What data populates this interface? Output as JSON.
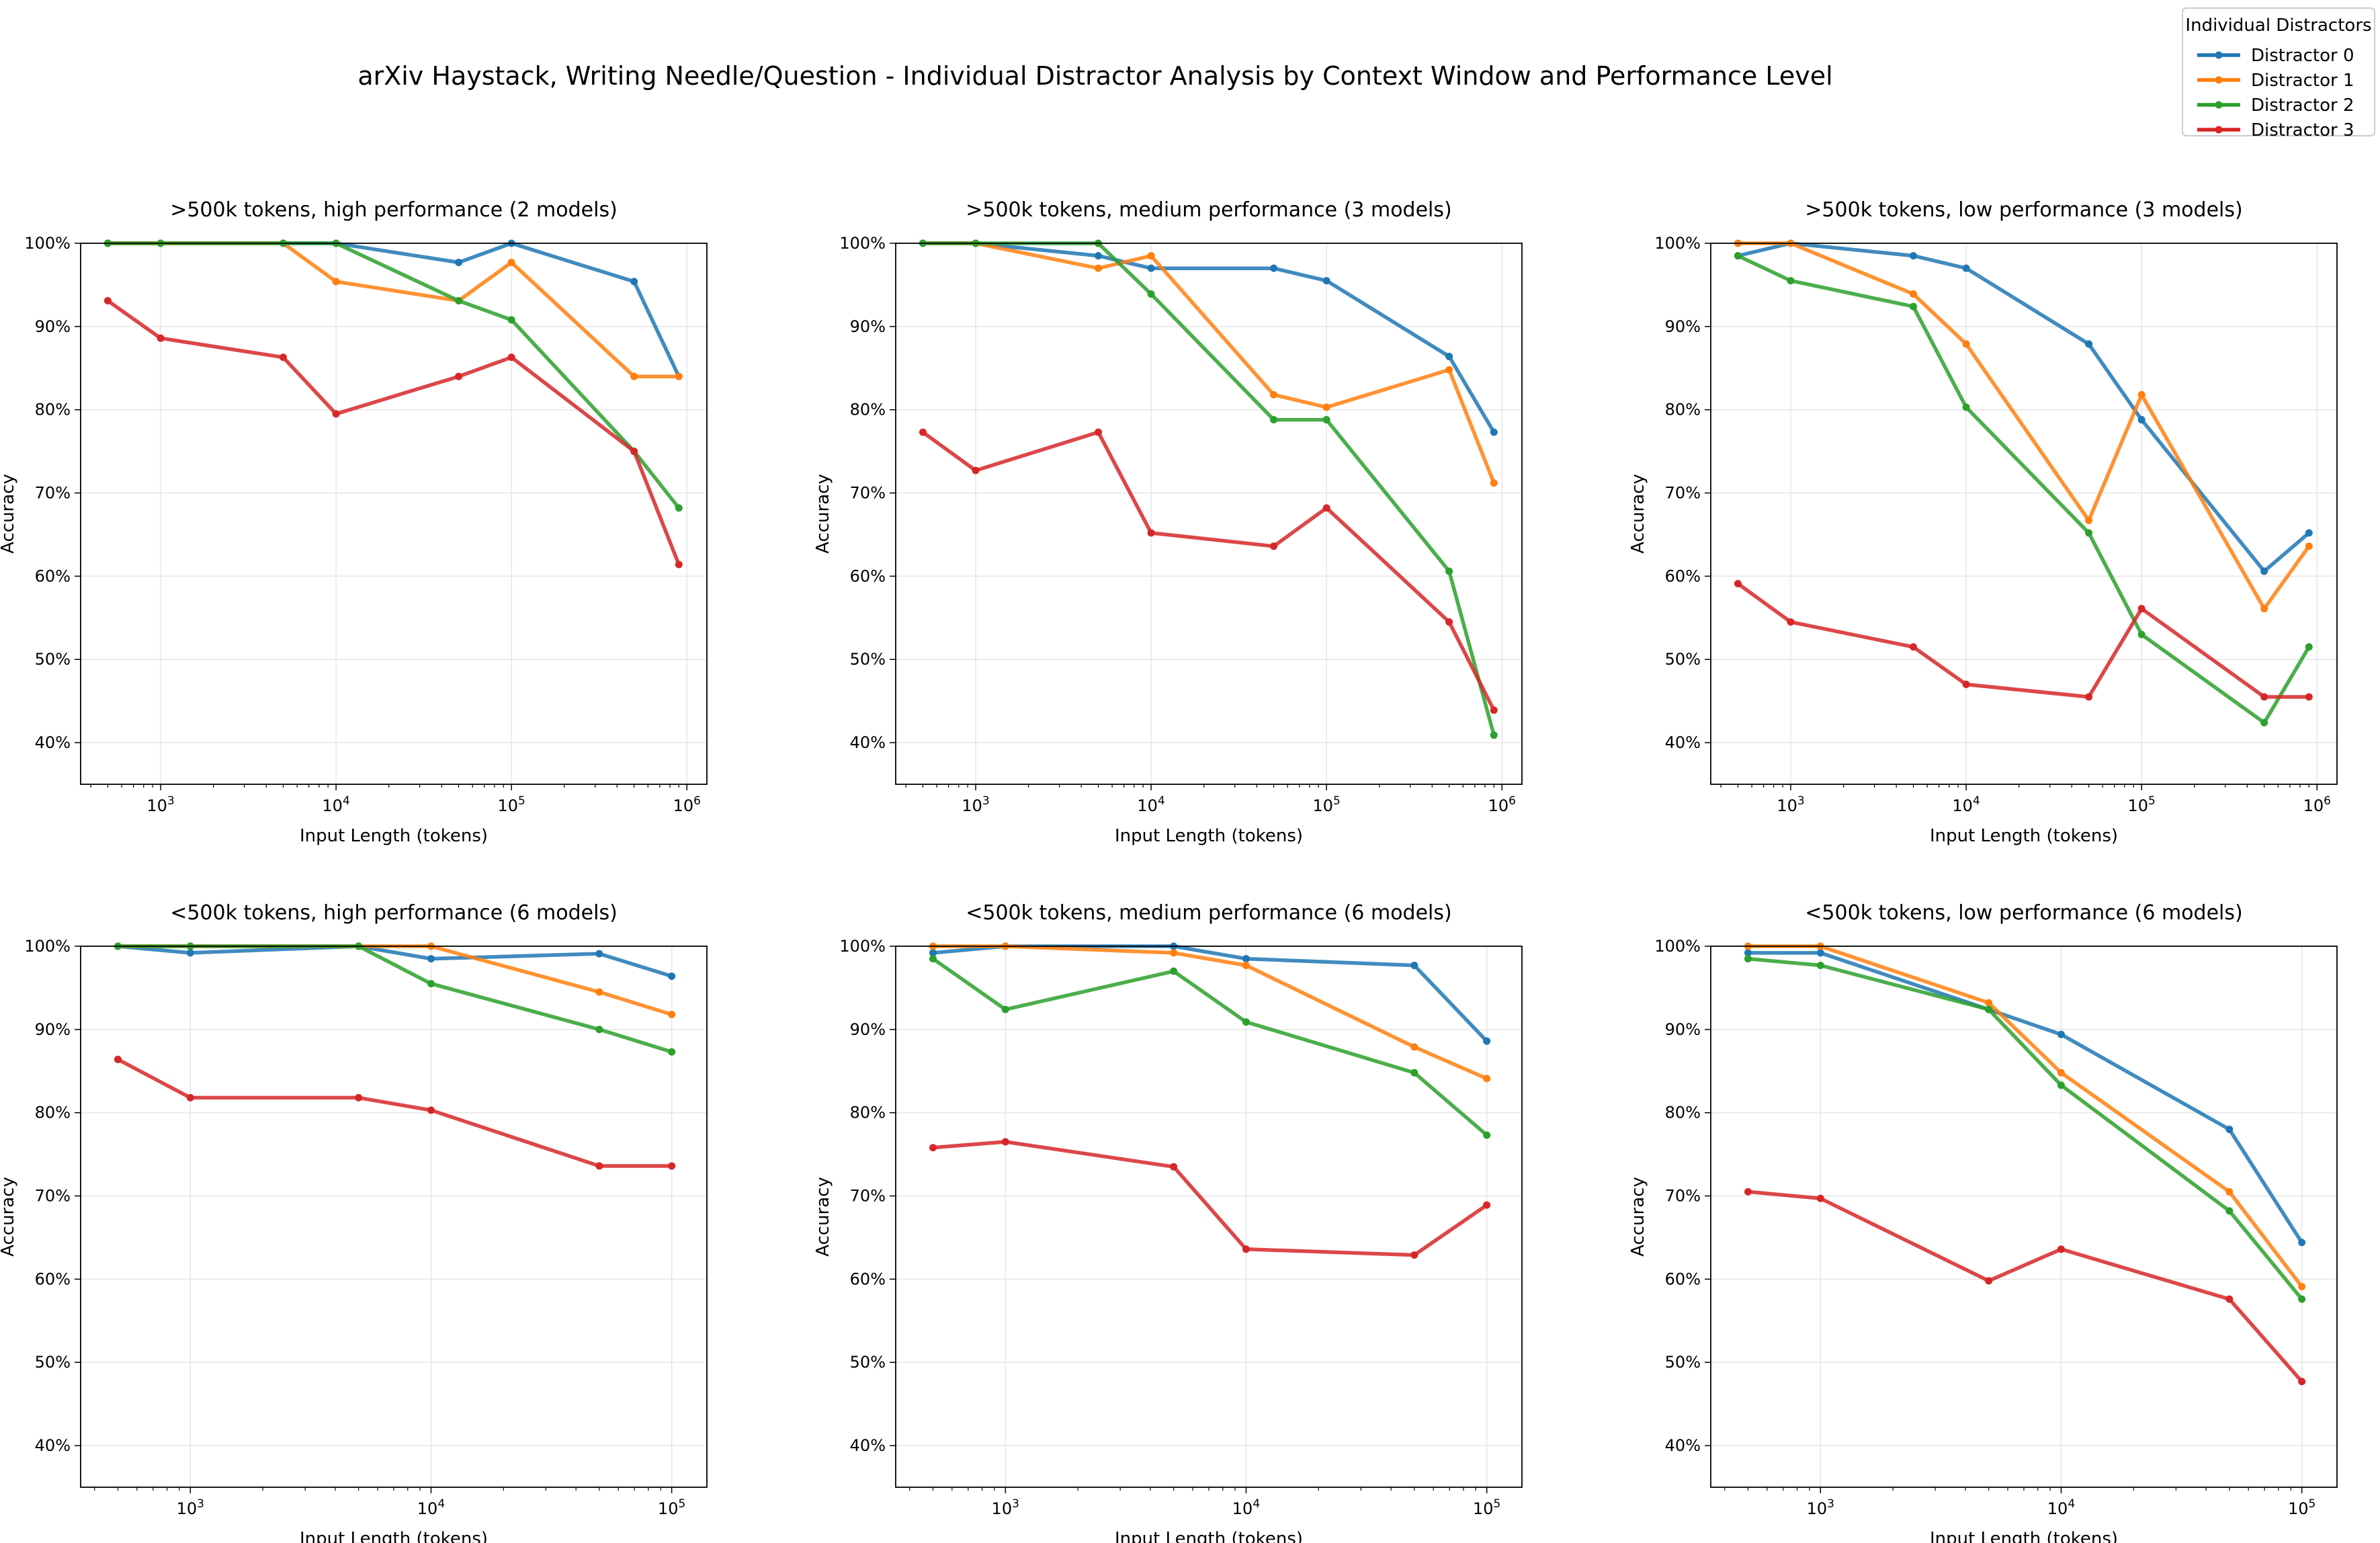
{
  "figure": {
    "suptitle": "arXiv Haystack, Writing Needle/Question - Individual Distractor Analysis by Context Window and Performance Level",
    "legend_title": "Individual Distractors",
    "legend_placement": "top-right",
    "series_colors": [
      "#1f77b4",
      "#ff7f0e",
      "#2ca02c",
      "#d62728"
    ]
  },
  "chart_data": [
    {
      "type": "line",
      "title": ">500k tokens, high performance (2 models)",
      "xlabel": "Input Length (tokens)",
      "ylabel": "Accuracy",
      "xscale": "log",
      "xlim": [
        350,
        1300000
      ],
      "ylim": [
        35,
        100
      ],
      "xticks": [
        1000,
        10000,
        100000,
        1000000
      ],
      "xticklabels": [
        "10^3",
        "10^4",
        "10^5",
        "10^6"
      ],
      "yticks": [
        40,
        50,
        60,
        70,
        80,
        90,
        100
      ],
      "yticklabels": [
        "40%",
        "50%",
        "60%",
        "70%",
        "80%",
        "90%",
        "100%"
      ],
      "grid": true,
      "x": [
        500,
        1000,
        5000,
        10000,
        50000,
        100000,
        500000,
        900000
      ],
      "series": [
        {
          "name": "Distractor 0",
          "values": [
            100,
            100,
            100,
            100,
            97.7,
            100,
            95.4,
            84
          ]
        },
        {
          "name": "Distractor 1",
          "values": [
            100,
            100,
            100,
            95.4,
            93.1,
            97.7,
            84,
            84
          ]
        },
        {
          "name": "Distractor 2",
          "values": [
            100,
            100,
            100,
            100,
            93.1,
            90.8,
            75,
            68.2
          ]
        },
        {
          "name": "Distractor 3",
          "values": [
            93.1,
            88.6,
            86.3,
            79.5,
            84,
            86.3,
            75,
            61.4
          ]
        }
      ]
    },
    {
      "type": "line",
      "title": ">500k tokens, medium performance (3 models)",
      "xlabel": "Input Length (tokens)",
      "ylabel": "Accuracy",
      "xscale": "log",
      "xlim": [
        350,
        1300000
      ],
      "ylim": [
        35,
        100
      ],
      "xticks": [
        1000,
        10000,
        100000,
        1000000
      ],
      "xticklabels": [
        "10^3",
        "10^4",
        "10^5",
        "10^6"
      ],
      "yticks": [
        40,
        50,
        60,
        70,
        80,
        90,
        100
      ],
      "yticklabels": [
        "40%",
        "50%",
        "60%",
        "70%",
        "80%",
        "90%",
        "100%"
      ],
      "grid": true,
      "x": [
        500,
        1000,
        5000,
        10000,
        50000,
        100000,
        500000,
        900000
      ],
      "series": [
        {
          "name": "Distractor 0",
          "values": [
            100,
            100,
            98.5,
            97,
            97,
            95.5,
            86.4,
            77.3
          ]
        },
        {
          "name": "Distractor 1",
          "values": [
            100,
            100,
            97,
            98.5,
            81.8,
            80.3,
            84.8,
            71.2
          ]
        },
        {
          "name": "Distractor 2",
          "values": [
            100,
            100,
            100,
            93.9,
            78.8,
            78.8,
            60.6,
            40.9
          ]
        },
        {
          "name": "Distractor 3",
          "values": [
            77.3,
            72.7,
            77.3,
            65.2,
            63.6,
            68.2,
            54.5,
            43.9
          ]
        }
      ]
    },
    {
      "type": "line",
      "title": ">500k tokens, low performance (3 models)",
      "xlabel": "Input Length (tokens)",
      "ylabel": "Accuracy",
      "xscale": "log",
      "xlim": [
        350,
        1300000
      ],
      "ylim": [
        35,
        100
      ],
      "xticks": [
        1000,
        10000,
        100000,
        1000000
      ],
      "xticklabels": [
        "10^3",
        "10^4",
        "10^5",
        "10^6"
      ],
      "yticks": [
        40,
        50,
        60,
        70,
        80,
        90,
        100
      ],
      "yticklabels": [
        "40%",
        "50%",
        "60%",
        "70%",
        "80%",
        "90%",
        "100%"
      ],
      "grid": true,
      "x": [
        500,
        1000,
        5000,
        10000,
        50000,
        100000,
        500000,
        900000
      ],
      "series": [
        {
          "name": "Distractor 0",
          "values": [
            98.5,
            100,
            98.5,
            97,
            87.9,
            78.8,
            60.6,
            65.2
          ]
        },
        {
          "name": "Distractor 1",
          "values": [
            100,
            100,
            93.9,
            87.9,
            66.7,
            81.8,
            56.1,
            63.6
          ]
        },
        {
          "name": "Distractor 2",
          "values": [
            98.5,
            95.5,
            92.4,
            80.3,
            65.2,
            53,
            42.4,
            51.5
          ]
        },
        {
          "name": "Distractor 3",
          "values": [
            59.1,
            54.5,
            51.5,
            47,
            45.5,
            56.1,
            45.5,
            45.5
          ]
        }
      ]
    },
    {
      "type": "line",
      "title": "<500k tokens, high performance (6 models)",
      "xlabel": "Input Length (tokens)",
      "ylabel": "Accuracy",
      "xscale": "log",
      "xlim": [
        350,
        140000
      ],
      "ylim": [
        35,
        100
      ],
      "xticks": [
        1000,
        10000,
        100000
      ],
      "xticklabels": [
        "10^3",
        "10^4",
        "10^5"
      ],
      "yticks": [
        40,
        50,
        60,
        70,
        80,
        90,
        100
      ],
      "yticklabels": [
        "40%",
        "50%",
        "60%",
        "70%",
        "80%",
        "90%",
        "100%"
      ],
      "grid": true,
      "x": [
        500,
        1000,
        5000,
        10000,
        50000,
        100000
      ],
      "series": [
        {
          "name": "Distractor 0",
          "values": [
            100,
            99.2,
            100,
            98.5,
            99.1,
            96.4
          ]
        },
        {
          "name": "Distractor 1",
          "values": [
            100,
            100,
            100,
            100,
            94.5,
            91.8
          ]
        },
        {
          "name": "Distractor 2",
          "values": [
            100,
            100,
            100,
            95.5,
            90,
            87.3
          ]
        },
        {
          "name": "Distractor 3",
          "values": [
            86.4,
            81.8,
            81.8,
            80.3,
            73.6,
            73.6
          ]
        }
      ]
    },
    {
      "type": "line",
      "title": "<500k tokens, medium performance (6 models)",
      "xlabel": "Input Length (tokens)",
      "ylabel": "Accuracy",
      "xscale": "log",
      "xlim": [
        350,
        140000
      ],
      "ylim": [
        35,
        100
      ],
      "xticks": [
        1000,
        10000,
        100000
      ],
      "xticklabels": [
        "10^3",
        "10^4",
        "10^5"
      ],
      "yticks": [
        40,
        50,
        60,
        70,
        80,
        90,
        100
      ],
      "yticklabels": [
        "40%",
        "50%",
        "60%",
        "70%",
        "80%",
        "90%",
        "100%"
      ],
      "grid": true,
      "x": [
        500,
        1000,
        5000,
        10000,
        50000,
        100000
      ],
      "series": [
        {
          "name": "Distractor 0",
          "values": [
            99.2,
            100,
            100,
            98.5,
            97.7,
            88.6
          ]
        },
        {
          "name": "Distractor 1",
          "values": [
            100,
            100,
            99.2,
            97.7,
            87.9,
            84.1
          ]
        },
        {
          "name": "Distractor 2",
          "values": [
            98.5,
            92.4,
            97,
            90.9,
            84.8,
            77.3
          ]
        },
        {
          "name": "Distractor 3",
          "values": [
            75.8,
            76.5,
            73.5,
            63.6,
            62.9,
            68.9
          ]
        }
      ]
    },
    {
      "type": "line",
      "title": "<500k tokens, low performance (6 models)",
      "xlabel": "Input Length (tokens)",
      "ylabel": "Accuracy",
      "xscale": "log",
      "xlim": [
        350,
        140000
      ],
      "ylim": [
        35,
        100
      ],
      "xticks": [
        1000,
        10000,
        100000
      ],
      "xticklabels": [
        "10^3",
        "10^4",
        "10^5"
      ],
      "yticks": [
        40,
        50,
        60,
        70,
        80,
        90,
        100
      ],
      "yticklabels": [
        "40%",
        "50%",
        "60%",
        "70%",
        "80%",
        "90%",
        "100%"
      ],
      "grid": true,
      "x": [
        500,
        1000,
        5000,
        10000,
        50000,
        100000
      ],
      "series": [
        {
          "name": "Distractor 0",
          "values": [
            99.2,
            99.2,
            92.4,
            89.4,
            78,
            64.4
          ]
        },
        {
          "name": "Distractor 1",
          "values": [
            100,
            100,
            93.2,
            84.8,
            70.5,
            59.1
          ]
        },
        {
          "name": "Distractor 2",
          "values": [
            98.5,
            97.7,
            92.4,
            83.3,
            68.2,
            57.6
          ]
        },
        {
          "name": "Distractor 3",
          "values": [
            70.5,
            69.7,
            59.8,
            63.6,
            57.6,
            47.7
          ]
        }
      ]
    }
  ]
}
